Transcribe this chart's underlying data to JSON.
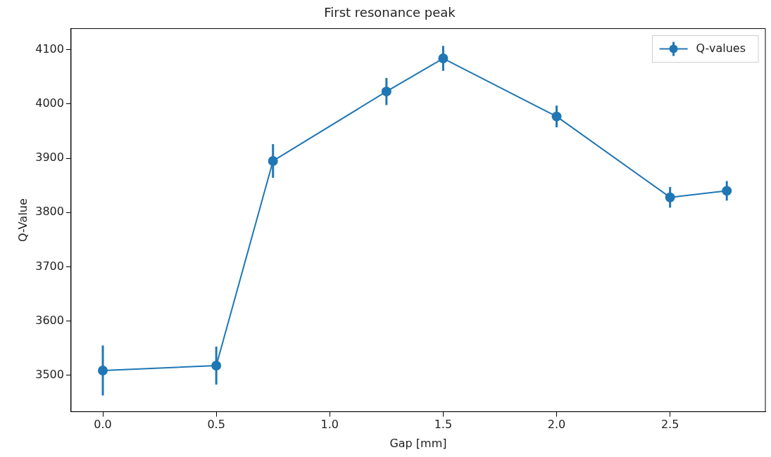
{
  "chart_data": {
    "type": "line",
    "title": "First resonance peak",
    "xlabel": "Gap [mm]",
    "ylabel": "Q-Value",
    "x": [
      0.0,
      0.5,
      0.75,
      1.25,
      1.5,
      2.0,
      2.5,
      2.75
    ],
    "series": [
      {
        "name": "Q-values",
        "color": "#1f77b4",
        "values": [
          3509,
          3518,
          3895,
          4023,
          4084,
          3977,
          3828,
          3840
        ],
        "errors": [
          46,
          35,
          31,
          25,
          23,
          20,
          19,
          18
        ]
      }
    ],
    "xlim": [
      -0.14,
      2.92
    ],
    "xticks": [
      {
        "value": 0,
        "label": "0.0"
      },
      {
        "value": 0.5,
        "label": "0.5"
      },
      {
        "value": 1,
        "label": "1.0"
      },
      {
        "value": 1.5,
        "label": "1.5"
      },
      {
        "value": 2,
        "label": "2.0"
      },
      {
        "value": 2.5,
        "label": "2.5"
      }
    ],
    "ylim": [
      3433,
      4139
    ],
    "yticks": [
      3500,
      3600,
      3700,
      3800,
      3900,
      4000,
      4100
    ],
    "grid": false,
    "legend": "top right",
    "marker": "circle",
    "line_style": "solid"
  }
}
